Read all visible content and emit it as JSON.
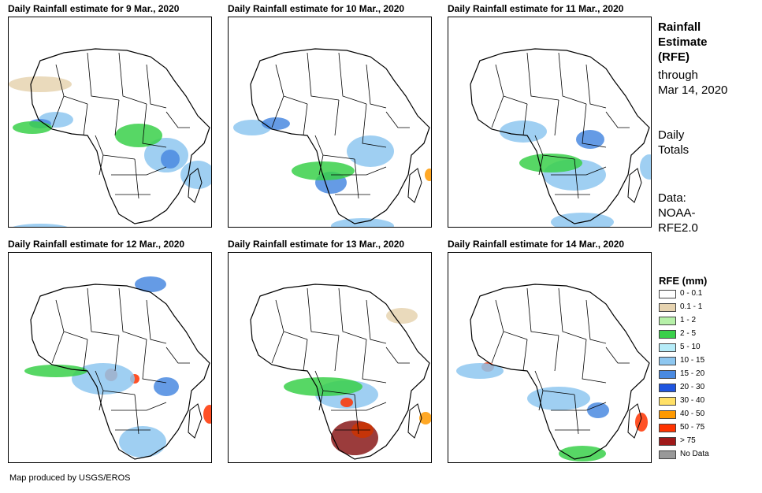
{
  "panels": [
    {
      "title": "Daily Rainfall estimate for 9 Mar., 2020",
      "rain": [
        [
          "#8ec7f0",
          60,
          130,
          22,
          10
        ],
        [
          "#4a8ae0",
          40,
          135,
          14,
          6
        ],
        [
          "#3ad04a",
          30,
          140,
          25,
          8
        ],
        [
          "#8ec7f0",
          200,
          175,
          28,
          22
        ],
        [
          "#4a8ae0",
          205,
          180,
          12,
          12
        ],
        [
          "#8ec7f0",
          240,
          200,
          22,
          18
        ],
        [
          "#3ad04a",
          165,
          150,
          30,
          15
        ],
        [
          "#8ec7f0",
          40,
          270,
          40,
          8
        ],
        [
          "#e6d3b0",
          40,
          85,
          40,
          10
        ]
      ]
    },
    {
      "title": "Daily Rainfall estimate for 10 Mar., 2020",
      "rain": [
        [
          "#8ec7f0",
          30,
          140,
          24,
          10
        ],
        [
          "#4a8ae0",
          60,
          135,
          18,
          8
        ],
        [
          "#8ec7f0",
          180,
          170,
          30,
          20
        ],
        [
          "#4a8ae0",
          130,
          210,
          20,
          14
        ],
        [
          "#ff9900",
          255,
          200,
          6,
          8
        ],
        [
          "#8ec7f0",
          170,
          265,
          40,
          10
        ],
        [
          "#3ad04a",
          120,
          195,
          40,
          12
        ]
      ]
    },
    {
      "title": "Daily Rainfall estimate for 11 Mar., 2020",
      "rain": [
        [
          "#8ec7f0",
          95,
          145,
          30,
          14
        ],
        [
          "#4a8ae0",
          180,
          155,
          18,
          12
        ],
        [
          "#8ec7f0",
          160,
          200,
          40,
          20
        ],
        [
          "#3ad04a",
          130,
          185,
          40,
          12
        ],
        [
          "#8ec7f0",
          255,
          190,
          12,
          16
        ],
        [
          "#8ec7f0",
          170,
          260,
          40,
          12
        ]
      ]
    },
    {
      "title": "Daily Rainfall estimate for 12 Mar., 2020",
      "rain": [
        [
          "#4a8ae0",
          180,
          40,
          20,
          10
        ],
        [
          "#ff3300",
          130,
          155,
          8,
          8
        ],
        [
          "#ff3300",
          160,
          160,
          6,
          6
        ],
        [
          "#8ec7f0",
          120,
          160,
          40,
          20
        ],
        [
          "#4a8ae0",
          200,
          170,
          16,
          12
        ],
        [
          "#ff3300",
          255,
          205,
          8,
          12
        ],
        [
          "#8ec7f0",
          170,
          240,
          30,
          20
        ],
        [
          "#3ad04a",
          60,
          150,
          40,
          8
        ]
      ]
    },
    {
      "title": "Daily Rainfall estimate for 13 Mar., 2020",
      "rain": [
        [
          "#8ec7f0",
          150,
          180,
          40,
          18
        ],
        [
          "#ff3300",
          150,
          190,
          8,
          6
        ],
        [
          "#8a1a1a",
          160,
          235,
          30,
          22
        ],
        [
          "#cc3300",
          170,
          225,
          14,
          10
        ],
        [
          "#ff9900",
          250,
          210,
          8,
          8
        ],
        [
          "#3ad04a",
          120,
          170,
          50,
          12
        ],
        [
          "#e6d3b0",
          220,
          80,
          20,
          10
        ]
      ]
    },
    {
      "title": "Daily Rainfall estimate for 14 Mar., 2020",
      "rain": [
        [
          "#ff3300",
          50,
          145,
          8,
          6
        ],
        [
          "#8ec7f0",
          40,
          150,
          30,
          10
        ],
        [
          "#8ec7f0",
          140,
          185,
          40,
          15
        ],
        [
          "#4a8ae0",
          190,
          200,
          14,
          10
        ],
        [
          "#ff3300",
          245,
          215,
          8,
          12
        ],
        [
          "#3ad04a",
          170,
          255,
          30,
          10
        ]
      ]
    }
  ],
  "side": {
    "heading_lines": [
      "Rainfall",
      "Estimate",
      "(RFE)"
    ],
    "through_lines": [
      "through",
      "Mar 14, 2020"
    ],
    "daily_lines": [
      "Daily",
      "Totals"
    ],
    "data_lines": [
      "Data:",
      "NOAA-",
      "RFE2.0"
    ]
  },
  "legend": {
    "title": "RFE (mm)",
    "items": [
      {
        "label": "0 - 0.1",
        "color": "#ffffff"
      },
      {
        "label": "0.1 - 1",
        "color": "#e6d3b0"
      },
      {
        "label": "1 - 2",
        "color": "#b6f0a8"
      },
      {
        "label": "2 - 5",
        "color": "#3ad04a"
      },
      {
        "label": "5 - 10",
        "color": "#b6ecf8"
      },
      {
        "label": "10 - 15",
        "color": "#8ec7f0"
      },
      {
        "label": "15 - 20",
        "color": "#4a8ae0"
      },
      {
        "label": "20 - 30",
        "color": "#1f55e0"
      },
      {
        "label": "30 - 40",
        "color": "#ffe066"
      },
      {
        "label": "40 - 50",
        "color": "#ff9900"
      },
      {
        "label": "50 - 75",
        "color": "#ff3300"
      },
      {
        "label": "> 75",
        "color": "#a01a1a"
      },
      {
        "label": "No Data",
        "color": "#999999"
      }
    ]
  },
  "credit": "Map produced by USGS/EROS"
}
